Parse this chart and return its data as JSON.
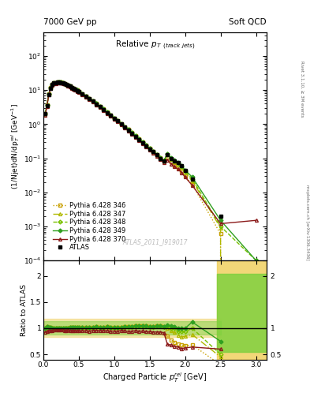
{
  "title_left": "7000 GeV pp",
  "title_right": "Soft QCD",
  "plot_title": "Relative $p_T$ (track jets)",
  "xlabel": "Charged Particle $p_T^{rel}$ [GeV]",
  "ylabel_main": "(1/Njet)dN/dp$_T^{rel}$ [GeV$^{-1}$]",
  "ylabel_ratio": "Ratio to ATLAS",
  "right_label_top": "Rivet 3.1.10, ≥ 3M events",
  "right_label_bot": "mcplots.cern.ch [arXiv:1306.3436]",
  "watermark": "ATLAS_2011_I919017",
  "xlim": [
    0,
    3.15
  ],
  "ylim_main": [
    0.0001,
    500
  ],
  "ylim_ratio": [
    0.4,
    2.3
  ],
  "atlas_x": [
    0.025,
    0.05,
    0.075,
    0.1,
    0.125,
    0.15,
    0.175,
    0.2,
    0.225,
    0.25,
    0.275,
    0.3,
    0.325,
    0.35,
    0.375,
    0.4,
    0.425,
    0.45,
    0.475,
    0.5,
    0.55,
    0.6,
    0.65,
    0.7,
    0.75,
    0.8,
    0.85,
    0.9,
    0.95,
    1.0,
    1.05,
    1.1,
    1.15,
    1.2,
    1.25,
    1.3,
    1.35,
    1.4,
    1.45,
    1.5,
    1.55,
    1.6,
    1.65,
    1.7,
    1.75,
    1.8,
    1.85,
    1.9,
    1.95,
    2.0,
    2.1,
    2.5,
    3.0
  ],
  "atlas_y": [
    2.0,
    3.5,
    7.5,
    11.5,
    14.5,
    16.0,
    16.5,
    17.0,
    17.0,
    16.8,
    16.5,
    15.8,
    15.0,
    14.0,
    13.0,
    12.0,
    11.2,
    10.5,
    9.8,
    9.0,
    7.8,
    6.6,
    5.6,
    4.7,
    3.9,
    3.3,
    2.7,
    2.2,
    1.85,
    1.5,
    1.25,
    1.0,
    0.82,
    0.67,
    0.55,
    0.44,
    0.36,
    0.29,
    0.235,
    0.19,
    0.155,
    0.125,
    0.1,
    0.082,
    0.13,
    0.1,
    0.085,
    0.075,
    0.062,
    0.045,
    0.025,
    0.002,
    0.0
  ],
  "py346_y": [
    2.0,
    3.6,
    7.6,
    11.6,
    14.6,
    16.1,
    16.6,
    17.1,
    17.1,
    16.9,
    16.6,
    15.9,
    15.1,
    14.1,
    13.1,
    12.1,
    11.3,
    10.6,
    9.9,
    9.1,
    7.9,
    6.7,
    5.7,
    4.8,
    4.0,
    3.35,
    2.75,
    2.25,
    1.88,
    1.52,
    1.27,
    1.02,
    0.84,
    0.69,
    0.57,
    0.46,
    0.375,
    0.305,
    0.245,
    0.195,
    0.16,
    0.13,
    0.105,
    0.085,
    0.11,
    0.078,
    0.062,
    0.052,
    0.042,
    0.03,
    0.017,
    0.0006,
    0.0
  ],
  "py347_y": [
    2.0,
    3.6,
    7.6,
    11.6,
    14.6,
    16.1,
    16.6,
    17.1,
    17.1,
    16.9,
    16.6,
    15.9,
    15.1,
    14.1,
    13.1,
    12.1,
    11.3,
    10.6,
    9.9,
    9.1,
    7.9,
    6.7,
    5.7,
    4.8,
    4.0,
    3.35,
    2.75,
    2.25,
    1.88,
    1.52,
    1.27,
    1.02,
    0.84,
    0.69,
    0.57,
    0.46,
    0.375,
    0.305,
    0.245,
    0.195,
    0.16,
    0.13,
    0.105,
    0.085,
    0.13,
    0.095,
    0.078,
    0.065,
    0.052,
    0.038,
    0.022,
    0.0009,
    0.0
  ],
  "py348_y": [
    2.0,
    3.6,
    7.6,
    11.6,
    14.6,
    16.1,
    16.6,
    17.1,
    17.1,
    16.9,
    16.6,
    15.9,
    15.1,
    14.1,
    13.1,
    12.1,
    11.3,
    10.6,
    9.9,
    9.1,
    7.9,
    6.7,
    5.7,
    4.8,
    4.0,
    3.35,
    2.75,
    2.25,
    1.88,
    1.52,
    1.27,
    1.02,
    0.84,
    0.69,
    0.57,
    0.46,
    0.375,
    0.305,
    0.245,
    0.195,
    0.16,
    0.13,
    0.105,
    0.085,
    0.135,
    0.1,
    0.085,
    0.07,
    0.058,
    0.042,
    0.025,
    0.001,
    0.0001
  ],
  "py349_y": [
    2.0,
    3.6,
    7.6,
    11.6,
    14.6,
    16.1,
    16.6,
    17.1,
    17.1,
    16.9,
    16.6,
    15.9,
    15.1,
    14.1,
    13.1,
    12.1,
    11.3,
    10.6,
    9.9,
    9.1,
    7.9,
    6.7,
    5.7,
    4.8,
    4.0,
    3.35,
    2.75,
    2.25,
    1.88,
    1.52,
    1.27,
    1.02,
    0.84,
    0.69,
    0.57,
    0.46,
    0.375,
    0.305,
    0.245,
    0.195,
    0.16,
    0.13,
    0.105,
    0.085,
    0.138,
    0.105,
    0.088,
    0.075,
    0.062,
    0.045,
    0.028,
    0.0015,
    0.0001
  ],
  "py370_y": [
    1.85,
    3.3,
    7.2,
    11.0,
    13.8,
    15.4,
    15.9,
    16.4,
    16.4,
    16.2,
    15.9,
    15.2,
    14.4,
    13.5,
    12.5,
    11.5,
    10.7,
    10.0,
    9.3,
    8.6,
    7.4,
    6.3,
    5.3,
    4.5,
    3.75,
    3.15,
    2.58,
    2.1,
    1.75,
    1.42,
    1.18,
    0.96,
    0.78,
    0.63,
    0.52,
    0.42,
    0.34,
    0.275,
    0.22,
    0.178,
    0.144,
    0.116,
    0.093,
    0.075,
    0.09,
    0.068,
    0.056,
    0.048,
    0.038,
    0.028,
    0.016,
    0.0012,
    0.0015
  ],
  "color_346": "#c8a000",
  "color_347": "#b0b800",
  "color_348": "#78c000",
  "color_349": "#30a020",
  "color_370": "#8b1a1a",
  "band_346_color": "#f0d060",
  "band_349_color": "#80d040",
  "ratio_ylim": [
    0.4,
    2.3
  ],
  "ratio_yticks": [
    0.5,
    1.0,
    1.5,
    2.0
  ]
}
